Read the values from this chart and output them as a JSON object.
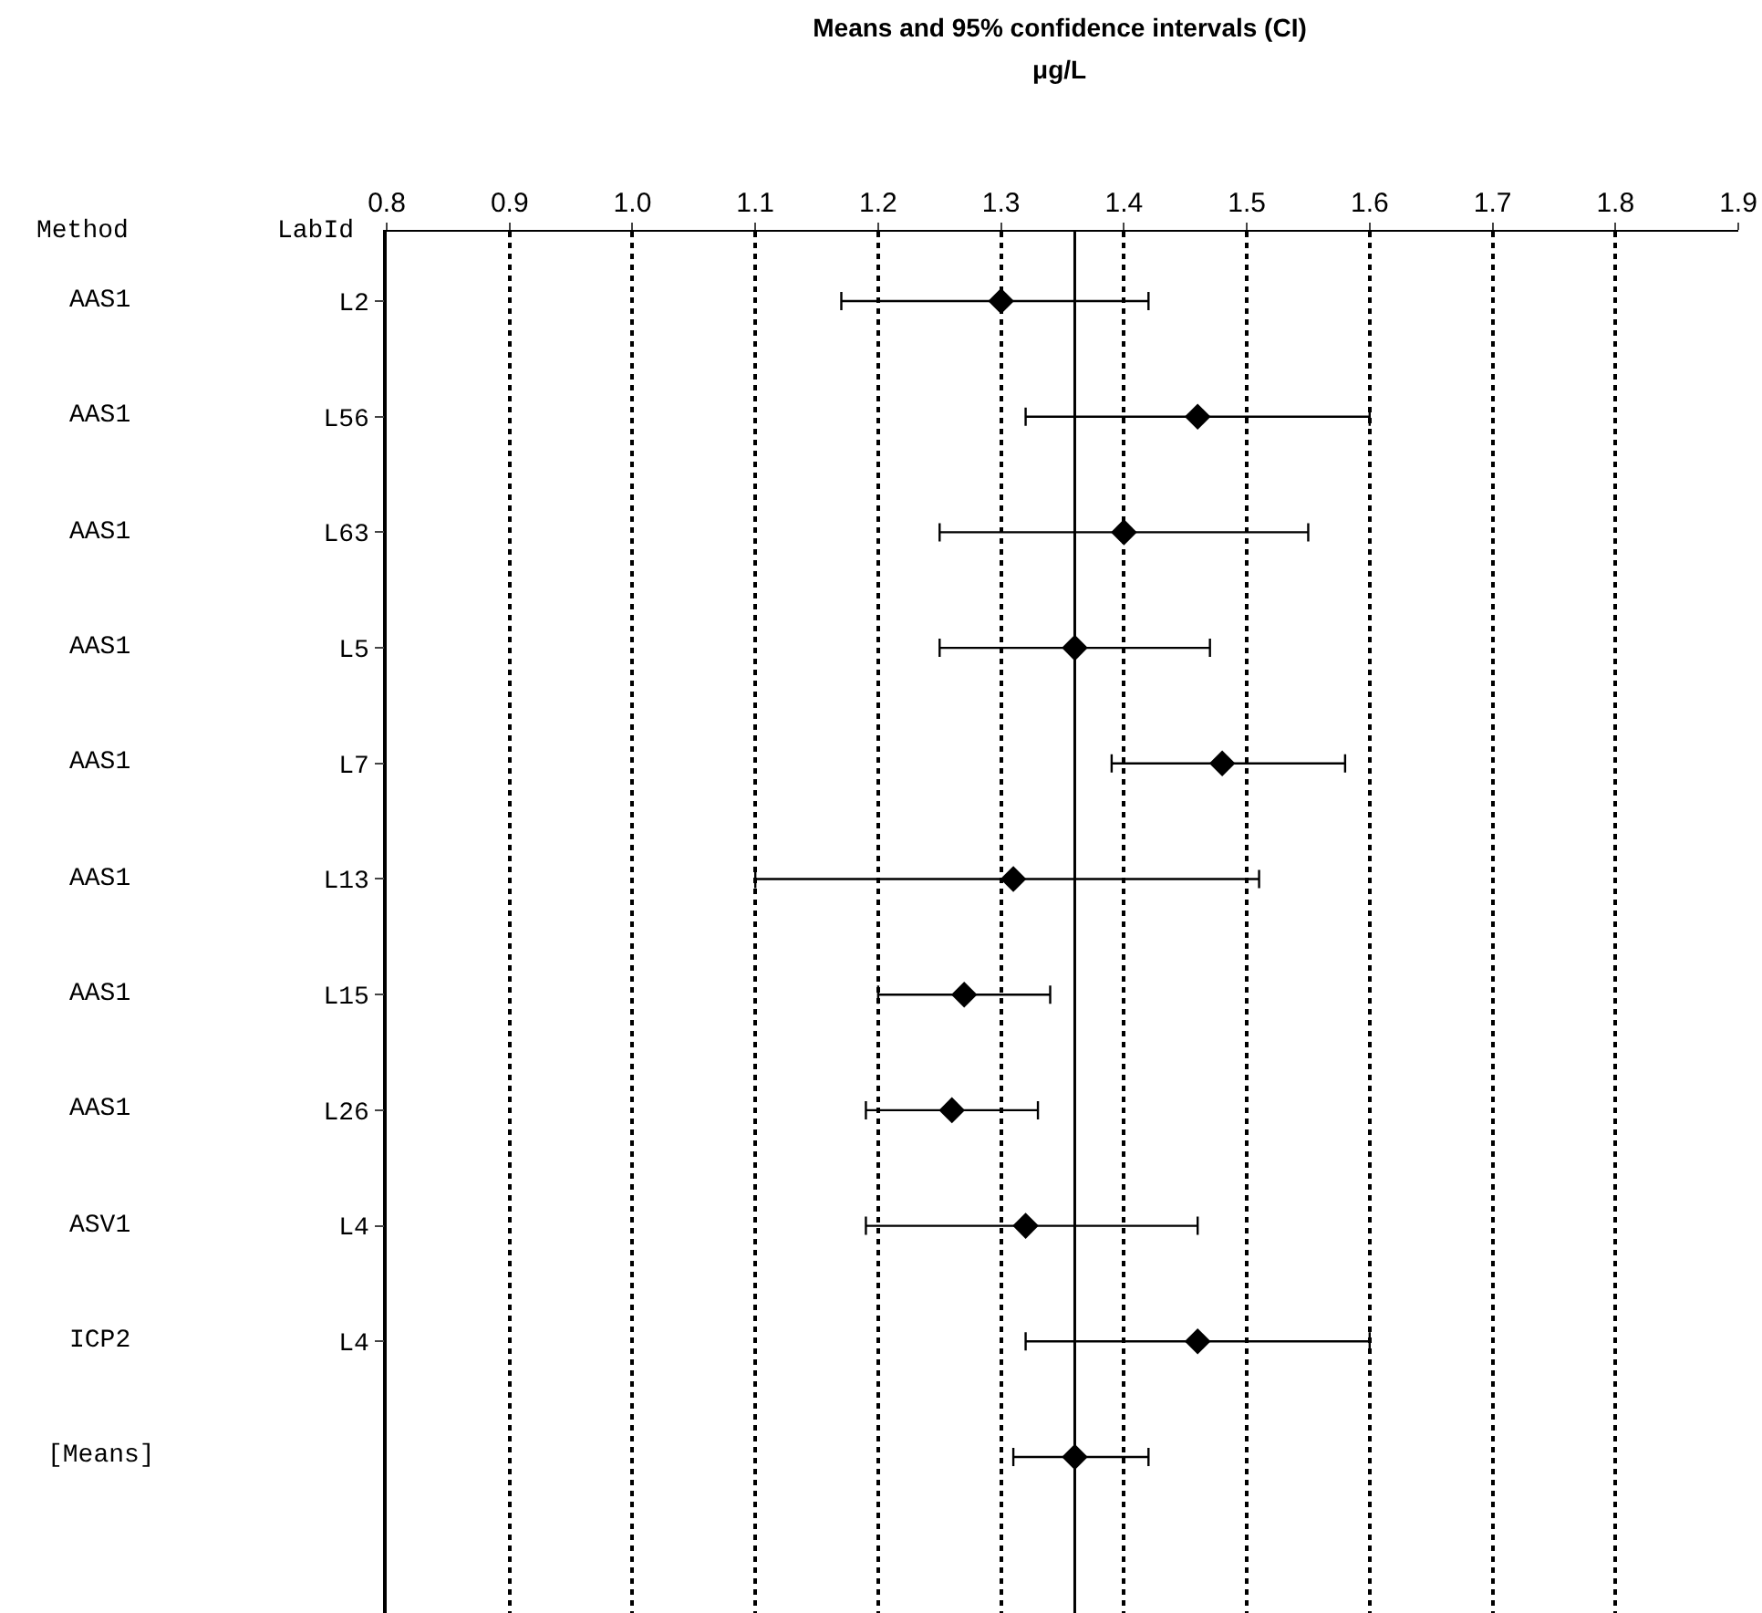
{
  "chart_data": {
    "type": "scatter",
    "orientation": "horizontal",
    "title": "Means and 95% confidence intervals (CI)",
    "xlabel": "μg/L",
    "ylabel": "LabId",
    "annotations": [
      "Method"
    ],
    "categories": [
      "L2",
      "L56",
      "L63",
      "L5",
      "L7",
      "L13",
      "L15",
      "L26",
      "L4",
      "L4",
      null
    ],
    "y2_categories": [
      "AAS1",
      "AAS1",
      "AAS1",
      "AAS1",
      "AAS1",
      "AAS1",
      "AAS1",
      "AAS1",
      "ASV1",
      "ICP2",
      "[Means]"
    ],
    "series": [
      {
        "color": "#000000",
        "values": [
          1.3,
          1.46,
          1.4,
          1.36,
          1.48,
          1.31,
          1.27,
          1.26,
          1.32,
          1.46,
          1.36
        ],
        "errors": [
          [
            1.17,
            1.42
          ],
          [
            1.32,
            1.6
          ],
          [
            1.25,
            1.55
          ],
          [
            1.25,
            1.47
          ],
          [
            1.39,
            1.58
          ],
          [
            1.1,
            1.51
          ],
          [
            1.2,
            1.34
          ],
          [
            1.19,
            1.33
          ],
          [
            1.19,
            1.46
          ],
          [
            1.32,
            1.6
          ],
          [
            1.31,
            1.42
          ]
        ]
      }
    ],
    "xlim": [
      0.8,
      1.9
    ],
    "xticks": [
      {
        "value": 0.8,
        "label": "0.8"
      },
      {
        "value": 0.9,
        "label": "0.9"
      },
      {
        "value": 1.0,
        "label": "1.0"
      },
      {
        "value": 1.1,
        "label": "1.1"
      },
      {
        "value": 1.2,
        "label": "1.2"
      },
      {
        "value": 1.3,
        "label": "1.3"
      },
      {
        "value": 1.4,
        "label": "1.4"
      },
      {
        "value": 1.5,
        "label": "1.5"
      },
      {
        "value": 1.6,
        "label": "1.6"
      },
      {
        "value": 1.7,
        "label": "1.7"
      },
      {
        "value": 1.8,
        "label": "1.8"
      },
      {
        "value": 1.9,
        "label": "1.9"
      }
    ],
    "ref_lines": [
      {
        "axis": "x",
        "value": 1.36,
        "color": "#000000"
      }
    ],
    "grid": "x",
    "marker": "diamond"
  }
}
